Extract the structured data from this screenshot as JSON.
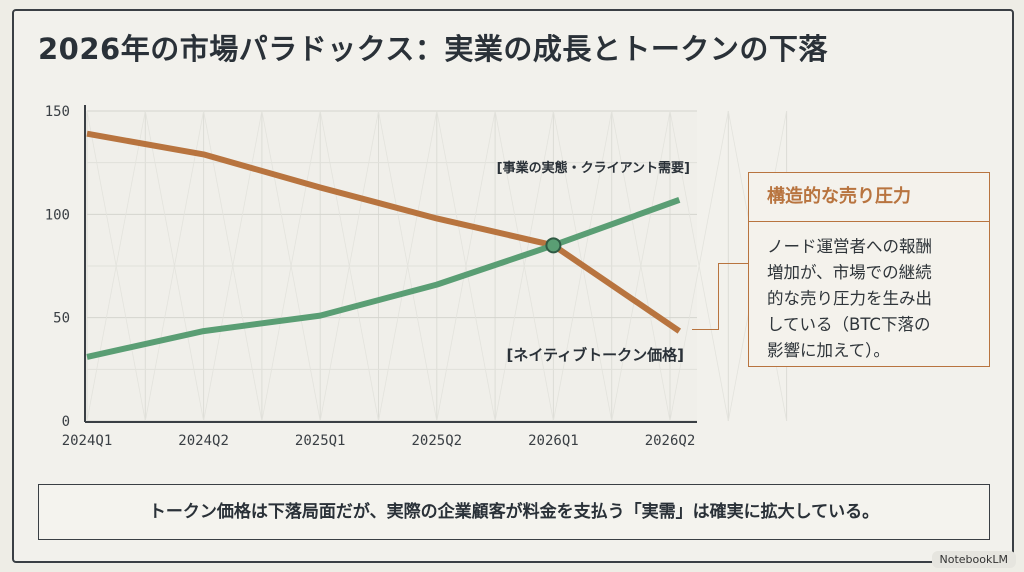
{
  "title": "2026年の市場パラドックス：実業の成長とトークンの下落",
  "chart_data": {
    "type": "line",
    "categories": [
      "2024Q1",
      "2024Q2",
      "2025Q1",
      "2025Q2",
      "2026Q1",
      "2026Q2"
    ],
    "x": [
      0,
      1,
      2,
      3,
      4,
      5.08
    ],
    "ylim": [
      0,
      150
    ],
    "yticks": [
      "0",
      "50",
      "100",
      "150"
    ],
    "grid": true,
    "series": [
      {
        "name": "[ネイティブトークン価格]",
        "color": "#b8743f",
        "values": [
          139,
          129,
          113,
          98,
          85,
          43.5
        ]
      },
      {
        "name": "[事業の実態・クライアント需要]",
        "color": "#5a9e74",
        "values": [
          31,
          43.5,
          51,
          66,
          85,
          107
        ]
      }
    ],
    "annotations": [
      {
        "type": "crossover-marker",
        "x": 4,
        "y": 85
      }
    ]
  },
  "callout": {
    "heading": "構造的な売り圧力",
    "lines": [
      "ノード運営者への報酬",
      "増加が、市場での継続",
      "的な売り圧力を生み出",
      "している（BTC下落の",
      "影響に加えて）。"
    ]
  },
  "takeaway": "トークン価格は下落局面だが、実際の企業顧客が料金を支払う「実需」は確実に拡大している。",
  "badge": "NotebookLM"
}
